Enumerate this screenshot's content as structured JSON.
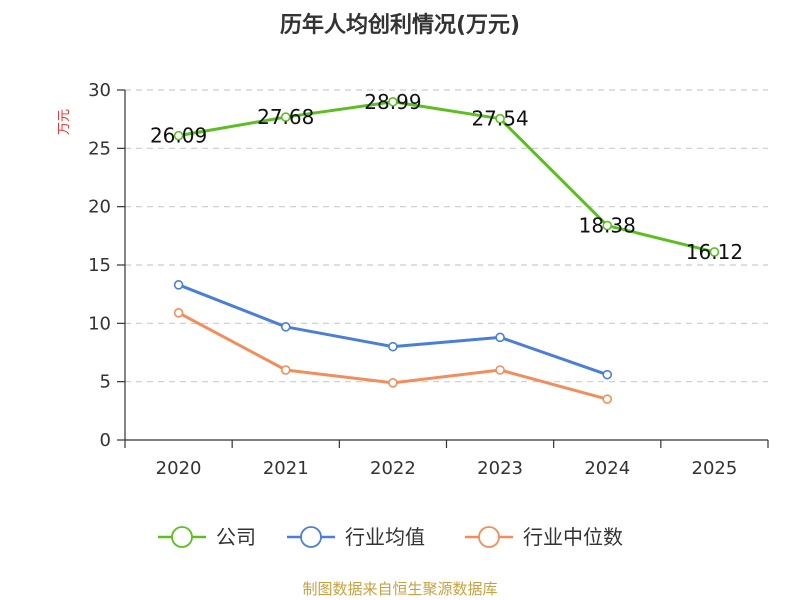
{
  "chart_data": {
    "type": "line",
    "title": "历年人均创利情况(万元)",
    "ylabel": "万元",
    "xlabel": "",
    "ylim": [
      0,
      30
    ],
    "yticks": [
      0,
      5,
      10,
      15,
      20,
      25,
      30
    ],
    "categories": [
      "2020",
      "2021",
      "2022",
      "2023",
      "2024",
      "2025"
    ],
    "series": [
      {
        "name": "公司",
        "color": "#5bbf21",
        "values": [
          26.09,
          27.68,
          28.99,
          27.54,
          18.38,
          16.12
        ],
        "show_labels": true,
        "labels": [
          "26.09",
          "27.68",
          "28.99",
          "27.54",
          "18.38",
          "16.12"
        ]
      },
      {
        "name": "行业均值",
        "color": "#4a7fd8",
        "values": [
          13.3,
          9.7,
          8.0,
          8.8,
          5.6,
          null
        ],
        "show_labels": false
      },
      {
        "name": "行业中位数",
        "color": "#f28e5c",
        "values": [
          10.9,
          6.0,
          4.9,
          6.0,
          3.5,
          null
        ],
        "show_labels": false
      }
    ],
    "grid": true,
    "legend_position": "bottom"
  },
  "colors": {
    "axis": "#333333",
    "grid": "#cccccc",
    "ylabel": "#e03030",
    "source": "#c8a040"
  },
  "source": "制图数据来自恒生聚源数据库"
}
